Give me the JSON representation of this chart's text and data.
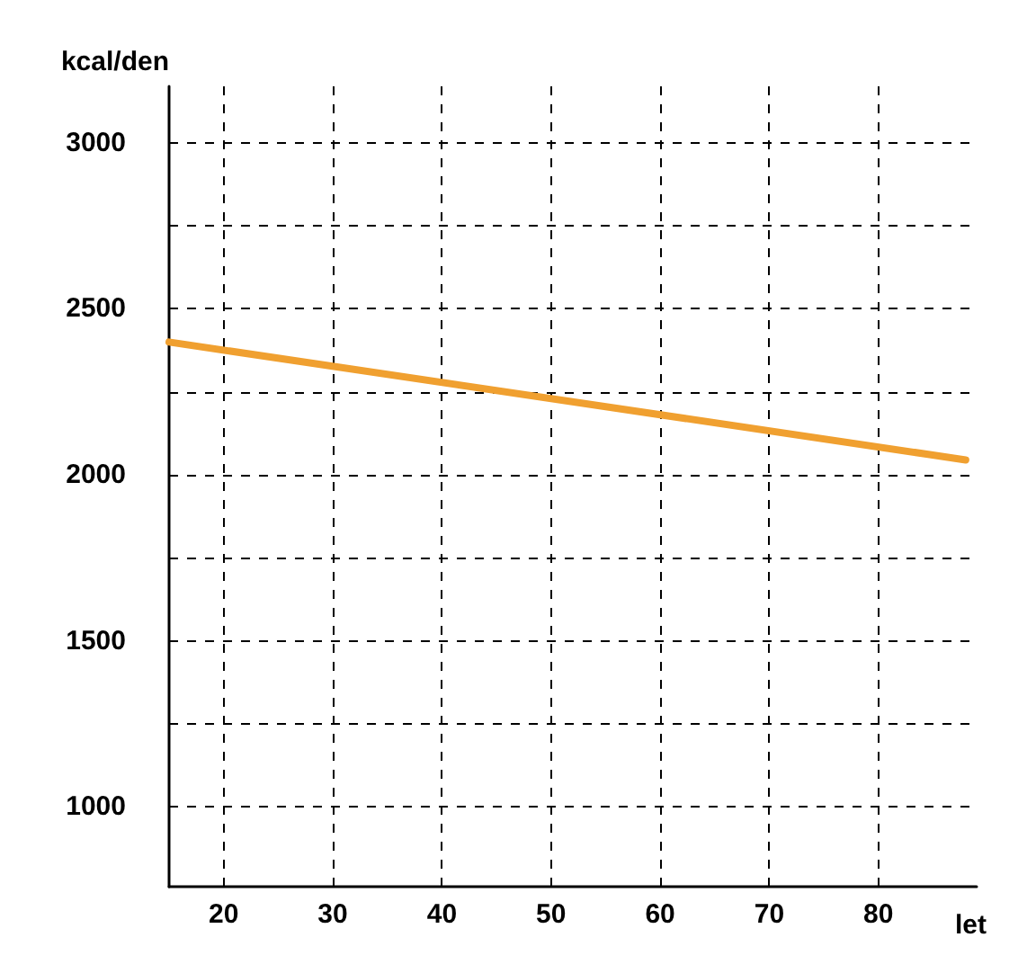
{
  "chart_data": {
    "type": "line",
    "xlabel": "let",
    "ylabel": "kcal/den",
    "x": [
      15,
      88
    ],
    "series": [
      {
        "color": "#f0a030",
        "values": [
          2400,
          2045
        ]
      }
    ],
    "xlim": [
      15,
      89
    ],
    "ylim": [
      760,
      3170
    ],
    "xticks": [
      20,
      30,
      40,
      50,
      60,
      70,
      80
    ],
    "yticks": [
      1000,
      {
        "value": 1250,
        "label": null
      },
      1500,
      {
        "value": 1750,
        "label": null
      },
      2000,
      {
        "value": 2250,
        "label": null
      },
      2500,
      {
        "value": 2750,
        "label": null
      },
      3000
    ],
    "grid": true,
    "marker": "none",
    "line_style": "solid"
  }
}
